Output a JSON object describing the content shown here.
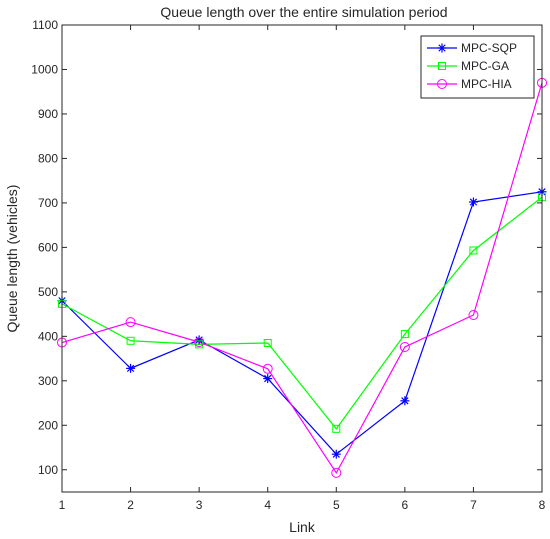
{
  "chart_data": {
    "type": "line",
    "title": "Queue length over the entire simulation period",
    "xlabel": "Link",
    "ylabel": "Queue length (vehicles)",
    "x": [
      1,
      2,
      3,
      4,
      5,
      6,
      7,
      8
    ],
    "xlim": [
      1,
      8
    ],
    "ylim": [
      50,
      1100
    ],
    "xticks": [
      1,
      2,
      3,
      4,
      5,
      6,
      7,
      8
    ],
    "yticks": [
      100,
      200,
      300,
      400,
      500,
      600,
      700,
      800,
      900,
      1000,
      1100
    ],
    "grid": false,
    "legend_position": "top-right",
    "series": [
      {
        "name": "MPC-SQP",
        "color": "#0000ff",
        "marker": "asterisk",
        "values": [
          480,
          328,
          392,
          305,
          135,
          255,
          702,
          725
        ]
      },
      {
        "name": "MPC-GA",
        "color": "#00ff00",
        "marker": "square",
        "values": [
          473,
          390,
          382,
          385,
          192,
          405,
          593,
          713
        ]
      },
      {
        "name": "MPC-HIA",
        "color": "#ff00ff",
        "marker": "circle",
        "values": [
          386,
          432,
          387,
          327,
          93,
          376,
          448,
          970
        ]
      }
    ]
  }
}
